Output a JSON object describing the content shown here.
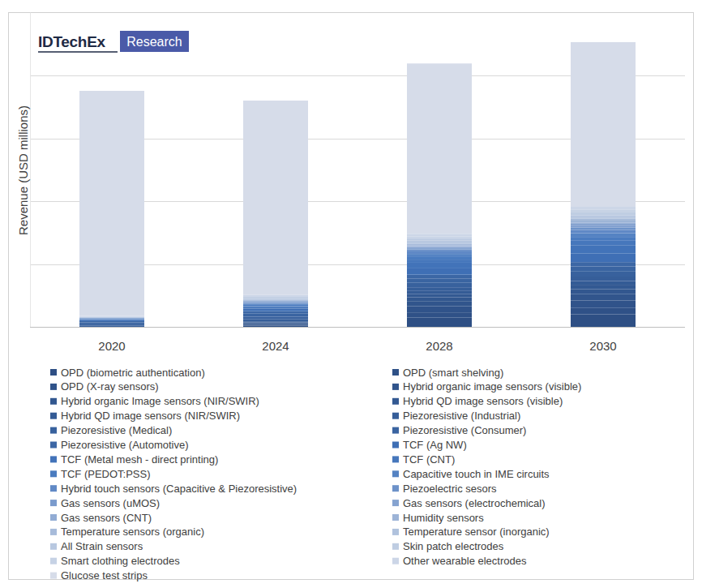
{
  "chart_data": {
    "type": "bar",
    "stacked": true,
    "title": "IDTechEx",
    "subtitle": "Research",
    "y_label": "Revenue (USD millions)",
    "categories": [
      "2020",
      "2024",
      "2028",
      "2030"
    ],
    "ylim": [
      0,
      5
    ],
    "yticks": [
      0,
      1,
      2,
      3,
      4
    ],
    "grid": true,
    "tick_labels": "x",
    "legend": "bottom",
    "series": [
      {
        "name": "OPD (biometric authentication)",
        "color": "#2e4f84",
        "values": [
          0,
          0.02,
          0.15,
          0.2
        ]
      },
      {
        "name": "OPD (smart shelving)",
        "color": "#2f5187",
        "values": [
          0,
          0.01,
          0.08,
          0.1
        ]
      },
      {
        "name": "OPD (X-ray sensors)",
        "color": "#30538a",
        "values": [
          0,
          0.02,
          0.1,
          0.12
        ]
      },
      {
        "name": "Hybrid organic image sensors (visible)",
        "color": "#31558c",
        "values": [
          0,
          0.01,
          0.08,
          0.1
        ]
      },
      {
        "name": "Hybrid organic Image sensors (NIR/SWIR)",
        "color": "#32578f",
        "values": [
          0,
          0.01,
          0.06,
          0.08
        ]
      },
      {
        "name": "Hybrid QD image sensors (visible)",
        "color": "#335992",
        "values": [
          0,
          0.01,
          0.05,
          0.07
        ]
      },
      {
        "name": "Hybrid QD image sensors (NIR/SWIR)",
        "color": "#345b95",
        "values": [
          0,
          0.01,
          0.05,
          0.06
        ]
      },
      {
        "name": "Piezoresistive (Industrial)",
        "color": "#365e99",
        "values": [
          0.02,
          0.03,
          0.06,
          0.07
        ]
      },
      {
        "name": "Piezoresistive (Medical)",
        "color": "#38619d",
        "values": [
          0.02,
          0.04,
          0.07,
          0.08
        ]
      },
      {
        "name": "Piezoresistive (Consumer)",
        "color": "#3a64a1",
        "values": [
          0.03,
          0.05,
          0.07,
          0.08
        ]
      },
      {
        "name": "Piezoresistive (Automotive)",
        "color": "#3c67a5",
        "values": [
          0.02,
          0.04,
          0.06,
          0.07
        ]
      },
      {
        "name": "TCF (Ag NW)",
        "color": "#3f6fb5",
        "values": [
          0.02,
          0.04,
          0.1,
          0.14
        ]
      },
      {
        "name": "TCF (Metal mesh - direct printing)",
        "color": "#4273b9",
        "values": [
          0.01,
          0.03,
          0.09,
          0.13
        ]
      },
      {
        "name": "TCF (CNT)",
        "color": "#4677bc",
        "values": [
          0.005,
          0.01,
          0.05,
          0.07
        ]
      },
      {
        "name": "TCF (PEDOT:PSS)",
        "color": "#4a7bbf",
        "values": [
          0.01,
          0.02,
          0.04,
          0.05
        ]
      },
      {
        "name": "Capacitive touch in IME circuits",
        "color": "#5583c3",
        "values": [
          0,
          0.02,
          0.05,
          0.07
        ]
      },
      {
        "name": "Hybrid touch sensors (Capacitive & Piezoresistive)",
        "color": "#6089c6",
        "values": [
          0,
          0.01,
          0.04,
          0.05
        ]
      },
      {
        "name": "Piezoelectric sesors",
        "color": "#6d92c9",
        "values": [
          0.005,
          0.01,
          0.03,
          0.04
        ]
      },
      {
        "name": "Gas sensors (uMOS)",
        "color": "#7a9bcd",
        "values": [
          0,
          0.01,
          0.02,
          0.03
        ]
      },
      {
        "name": "Gas sensors (electrochemical)",
        "color": "#86a3d0",
        "values": [
          0.005,
          0.01,
          0.02,
          0.03
        ]
      },
      {
        "name": "Gas sensors (CNT)",
        "color": "#92acd4",
        "values": [
          0,
          0.005,
          0.01,
          0.02
        ]
      },
      {
        "name": "Humidity sensors",
        "color": "#9db4d7",
        "values": [
          0.005,
          0.01,
          0.02,
          0.03
        ]
      },
      {
        "name": "Temperature sensors (organic)",
        "color": "#a7bbda",
        "values": [
          0,
          0.005,
          0.02,
          0.03
        ]
      },
      {
        "name": "Temperature sensor (inorganic)",
        "color": "#b0c2dd",
        "values": [
          0.005,
          0.01,
          0.02,
          0.02
        ]
      },
      {
        "name": "All Strain sensors",
        "color": "#b8c8e0",
        "values": [
          0.005,
          0.02,
          0.03,
          0.03
        ]
      },
      {
        "name": "Skin patch electrodes",
        "color": "#bfcde2",
        "values": [
          0.005,
          0.02,
          0.04,
          0.05
        ]
      },
      {
        "name": "Smart clothing electrodes",
        "color": "#c6d2e5",
        "values": [
          0.005,
          0.01,
          0.03,
          0.04
        ]
      },
      {
        "name": "Other wearable electrodes",
        "color": "#ccd6e7",
        "values": [
          0.005,
          0.02,
          0.04,
          0.05
        ]
      },
      {
        "name": "Glucose test strips",
        "color": "#d6dce9",
        "values": [
          3.58,
          3.09,
          2.71,
          2.62
        ]
      }
    ]
  }
}
